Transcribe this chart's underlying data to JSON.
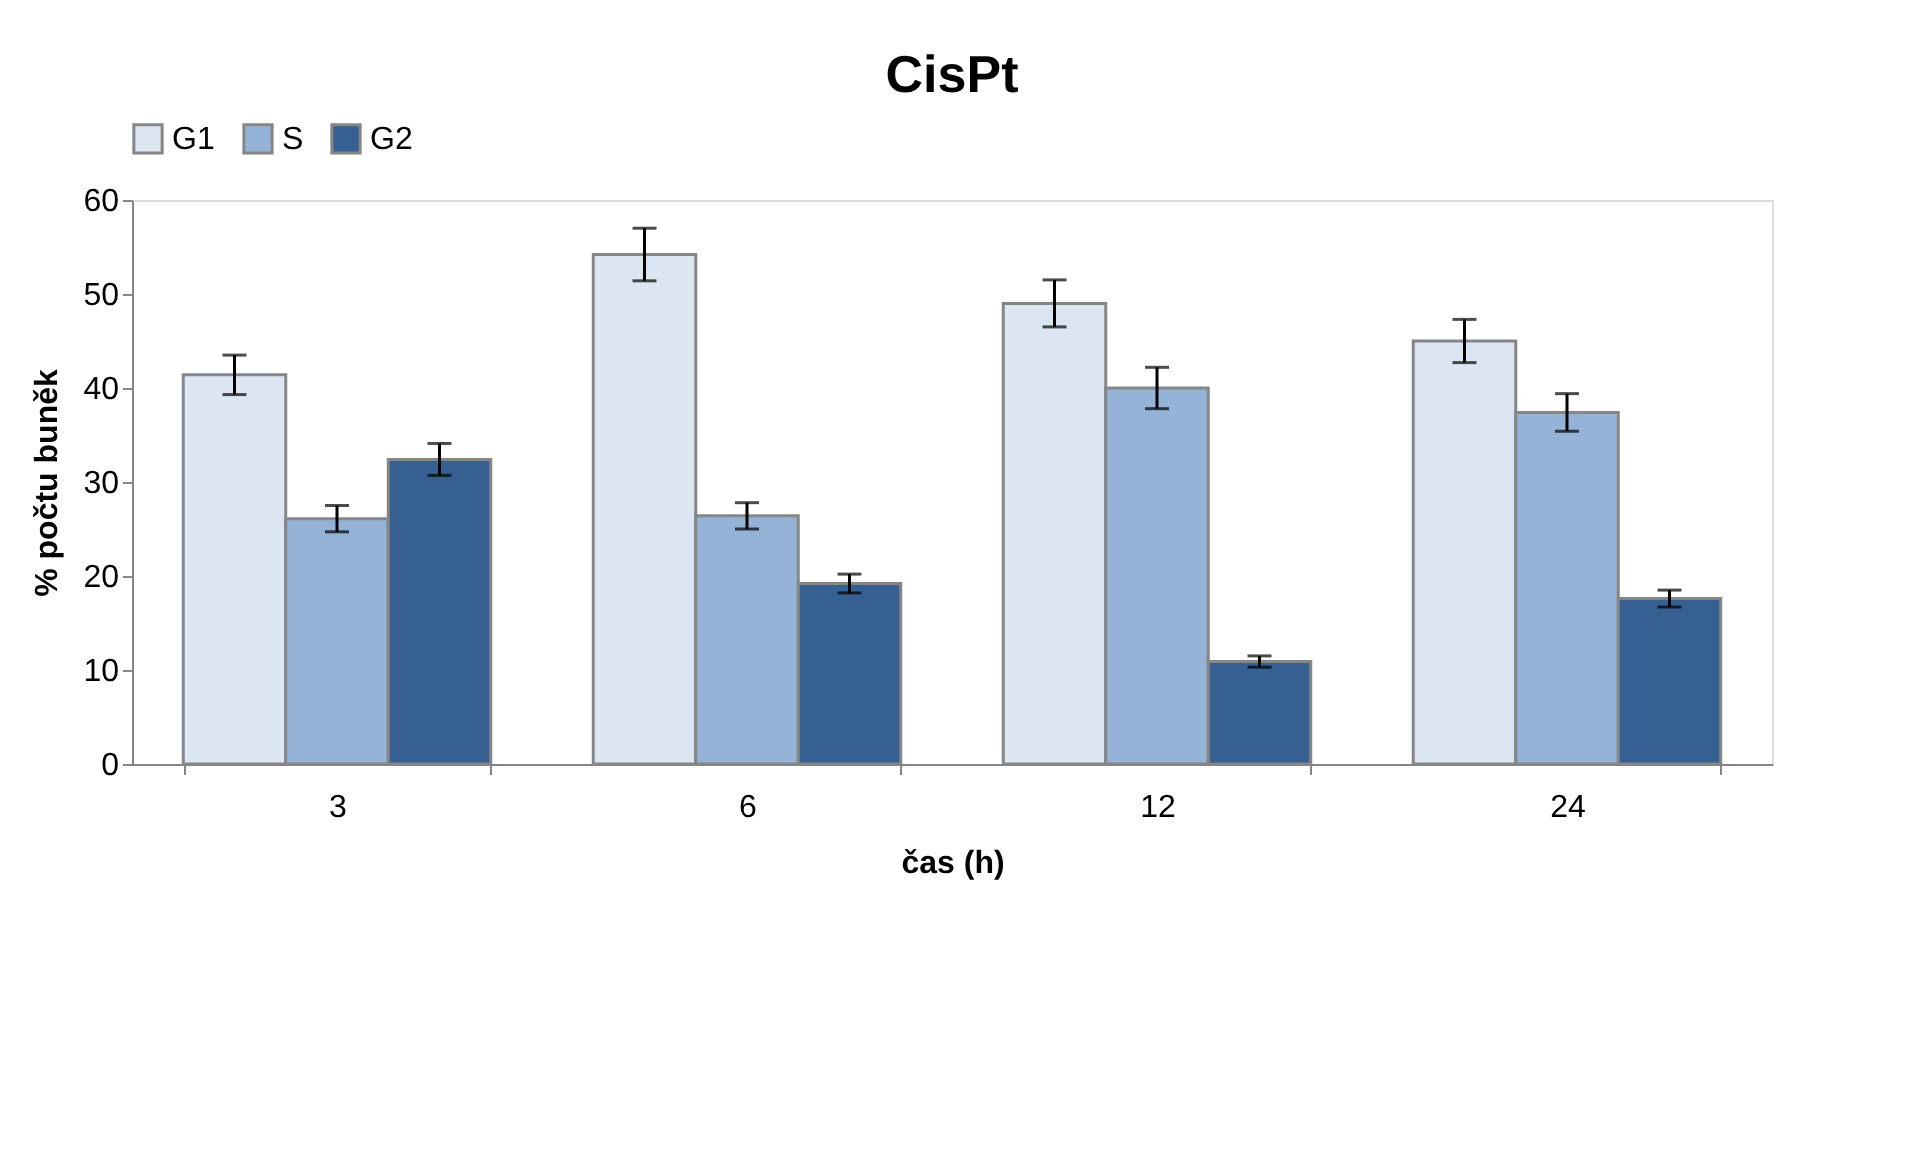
{
  "chart_data": {
    "type": "bar",
    "title": "CisPt",
    "xlabel": "čas (h)",
    "ylabel": "% počtu buněk",
    "categories": [
      "3",
      "6",
      "12",
      "24"
    ],
    "series": [
      {
        "name": "G1",
        "color": "#dce6f2",
        "values": [
          41.4,
          54.2,
          49.0,
          45.0
        ],
        "errors": [
          2.1,
          2.8,
          2.5,
          2.3
        ]
      },
      {
        "name": "S",
        "color": "#95b3d7",
        "values": [
          26.1,
          26.4,
          40.0,
          37.4
        ],
        "errors": [
          1.4,
          1.4,
          2.2,
          2.0
        ]
      },
      {
        "name": "G2",
        "color": "#376092",
        "values": [
          32.4,
          19.2,
          10.9,
          17.6
        ],
        "errors": [
          1.7,
          1.0,
          0.6,
          0.9
        ]
      }
    ],
    "ylim": [
      0,
      60
    ],
    "yticks": [
      0,
      10,
      20,
      30,
      40,
      50,
      60
    ],
    "grid": false,
    "legend": "top"
  }
}
